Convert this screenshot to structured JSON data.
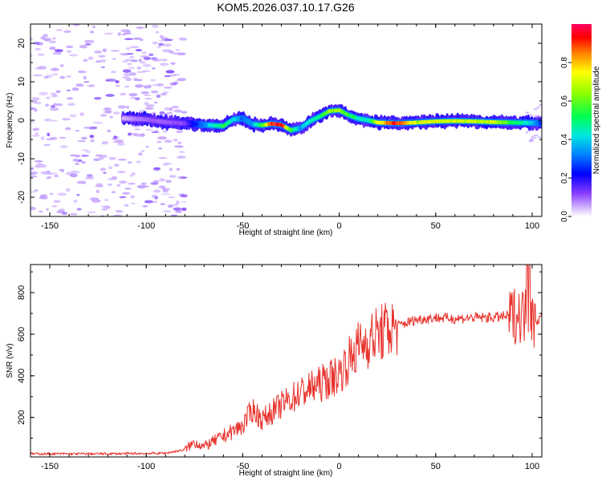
{
  "figure": {
    "title": "KOM5.2026.037.10.17.G26"
  },
  "colors": {
    "line": "#e8322c",
    "noise": "#c9a8ff",
    "noise_dark": "#8f5bff",
    "axes": "#000000"
  },
  "chart_data": [
    {
      "type": "heatmap",
      "title": "KOM5.2026.037.10.17.G26",
      "xlabel": "Height of straight line (km)",
      "ylabel": "Frequency (Hz)",
      "xlim": [
        -160,
        105
      ],
      "ylim": [
        -25,
        25
      ],
      "xticks": [
        -150,
        -100,
        -50,
        0,
        50,
        100
      ],
      "yticks": [
        -20,
        -10,
        0,
        10,
        20
      ],
      "colorbar": {
        "label": "Normalized spectral amplitude",
        "range": [
          0,
          1
        ],
        "ticks": [
          "0.0",
          "0.2",
          "0.4",
          "0.6",
          "0.8"
        ],
        "tick_values": [
          0.0,
          0.2,
          0.4,
          0.6,
          0.8
        ]
      },
      "ridge": {
        "x": [
          -112,
          -100,
          -90,
          -80,
          -70,
          -60,
          -55,
          -50,
          -45,
          -40,
          -35,
          -30,
          -25,
          -20,
          -15,
          -10,
          -5,
          0,
          5,
          10,
          15,
          20,
          30,
          40,
          50,
          60,
          70,
          80,
          90,
          100,
          105
        ],
        "freq": [
          0.5,
          0.2,
          -0.5,
          -0.8,
          -1.2,
          -1.5,
          0.2,
          0.5,
          -1.0,
          -1.3,
          -0.9,
          -1.2,
          -2.6,
          -2.0,
          -0.2,
          1.0,
          2.4,
          2.6,
          1.3,
          0.4,
          0.0,
          -0.6,
          -0.8,
          -0.6,
          -0.3,
          -0.2,
          -0.3,
          -0.5,
          -0.6,
          -0.7,
          -0.7
        ],
        "amplitude": [
          0.05,
          0.1,
          0.1,
          0.12,
          0.32,
          0.55,
          0.42,
          0.3,
          0.35,
          0.55,
          0.88,
          0.95,
          0.6,
          0.35,
          0.45,
          0.5,
          0.62,
          0.65,
          0.55,
          0.45,
          0.42,
          0.72,
          0.9,
          0.7,
          0.72,
          0.7,
          0.68,
          0.7,
          0.55,
          0.4,
          0.25
        ]
      },
      "noise_region": [
        -160,
        -80
      ]
    },
    {
      "type": "line",
      "xlabel": "Height of straight line (km)",
      "ylabel": "SNR (v/v)",
      "xlim": [
        -160,
        105
      ],
      "ylim": [
        10,
        935
      ],
      "xticks": [
        -150,
        -100,
        -50,
        0,
        50,
        100
      ],
      "yticks": [
        200,
        400,
        600,
        800
      ],
      "series": [
        {
          "name": "SNR",
          "x": [
            -160,
            -120,
            -90,
            -80,
            -75,
            -70,
            -60,
            -50,
            -45,
            -40,
            -30,
            -20,
            -10,
            0,
            10,
            20,
            30,
            40,
            50,
            60,
            70,
            80,
            90,
            95,
            100,
            105
          ],
          "y": [
            25,
            25,
            28,
            45,
            80,
            60,
            110,
            160,
            240,
            190,
            260,
            320,
            360,
            410,
            540,
            600,
            640,
            670,
            680,
            675,
            680,
            680,
            690,
            700,
            660,
            680
          ]
        }
      ]
    }
  ]
}
